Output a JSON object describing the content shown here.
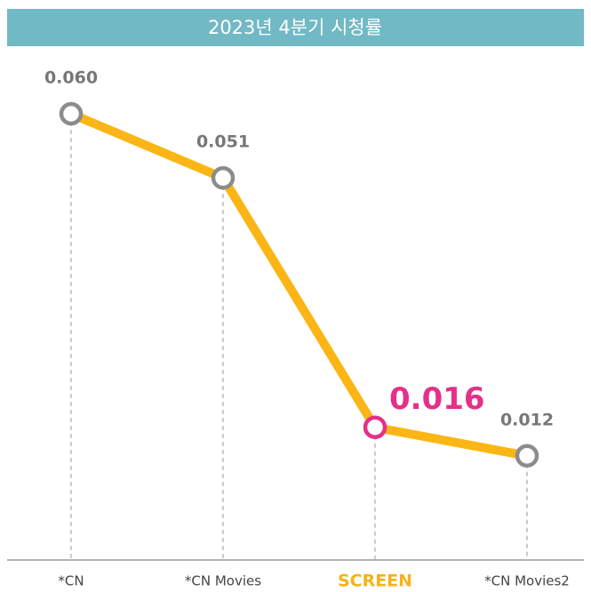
{
  "chart_data": {
    "type": "line",
    "title": "2023년 4분기 시청률",
    "categories": [
      "*CN",
      "*CN Movies",
      "SCREEN",
      "*CN Movies2"
    ],
    "values": [
      0.06,
      0.051,
      0.016,
      0.012
    ],
    "value_labels": [
      "0.060",
      "0.051",
      "0.016",
      "0.012"
    ],
    "color": "#fbb515",
    "marker_color": "#8c8c8c",
    "highlight": "SCREEN",
    "highlight_colors": {
      "marker": "#e5308a",
      "category": "#f5b21a"
    }
  }
}
